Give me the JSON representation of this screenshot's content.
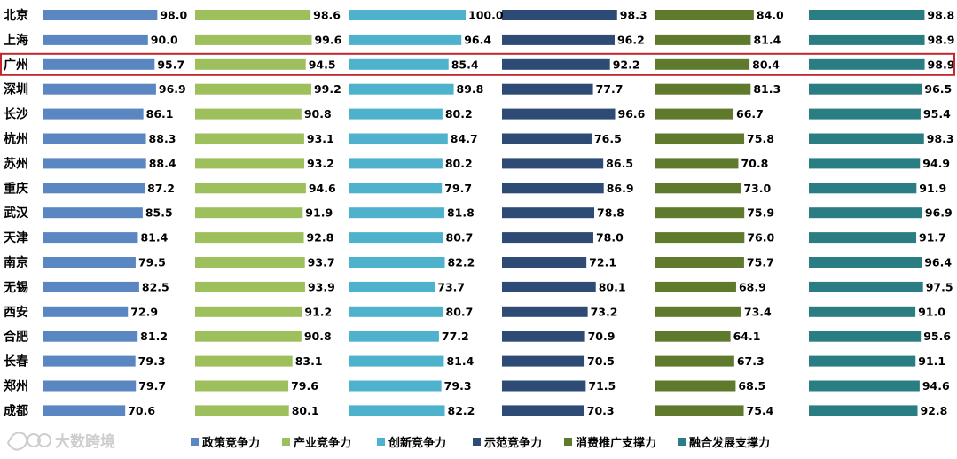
{
  "chart_data": {
    "type": "bar",
    "orientation": "horizontal",
    "title": "",
    "categories": [
      "北京",
      "上海",
      "广州",
      "深圳",
      "长沙",
      "杭州",
      "苏州",
      "重庆",
      "武汉",
      "天津",
      "南京",
      "无锡",
      "西安",
      "合肥",
      "长春",
      "郑州",
      "成都"
    ],
    "highlighted_category": "广州",
    "xlim": [
      0,
      100
    ],
    "series": [
      {
        "name": "政策竞争力",
        "color": "#5a86c1",
        "values": [
          98.0,
          90.0,
          95.7,
          96.9,
          86.1,
          88.3,
          88.4,
          87.2,
          85.5,
          81.4,
          79.5,
          82.5,
          72.9,
          81.2,
          79.3,
          79.7,
          70.6
        ],
        "labels": [
          "98.0",
          "90.0",
          "95.7",
          "96.9",
          "86.1",
          "88.3",
          "88.4",
          "87.2",
          "85.5",
          "81.4",
          "79.5",
          "82.5",
          "72.9",
          "81.2",
          "79.3",
          "79.7",
          "70.6"
        ]
      },
      {
        "name": "产业竞争力",
        "color": "#9dbf5c",
        "values": [
          98.6,
          99.6,
          94.5,
          99.2,
          90.8,
          93.1,
          93.2,
          94.6,
          91.9,
          92.8,
          93.7,
          93.9,
          91.2,
          90.8,
          83.1,
          79.6,
          80.1
        ],
        "labels": [
          "98.6",
          "99.6",
          "94.5",
          "99.2",
          "90.8",
          "93.1",
          "93.2",
          "94.6",
          "91.9",
          "92.8",
          "93.7",
          "93.9",
          "91.2",
          "90.8",
          "83.1",
          "79.6",
          "80.1"
        ]
      },
      {
        "name": "创新竞争力",
        "color": "#4fb2cc",
        "values": [
          100.0,
          96.4,
          85.4,
          89.8,
          80.2,
          84.7,
          80.2,
          79.7,
          81.8,
          80.7,
          82.2,
          73.7,
          80.7,
          77.2,
          81.4,
          79.3,
          82.2
        ],
        "labels": [
          "100.0",
          "96.4",
          "85.4",
          "89.8",
          "80.2",
          "84.7",
          "80.2",
          "79.7",
          "81.8",
          "80.7",
          "82.2",
          "73.7",
          "80.7",
          "77.2",
          "81.4",
          "79.3",
          "82.2"
        ]
      },
      {
        "name": "示范竞争力",
        "color": "#2d4b74",
        "values": [
          98.3,
          96.2,
          92.2,
          77.7,
          96.6,
          76.5,
          86.5,
          86.9,
          78.8,
          78.0,
          72.1,
          80.1,
          73.2,
          70.9,
          70.5,
          71.5,
          70.3
        ],
        "labels": [
          "98.3",
          "96.2",
          "92.2",
          "77.7",
          "96.6",
          "76.5",
          "86.5",
          "86.9",
          "78.8",
          "78.0",
          "72.1",
          "80.1",
          "73.2",
          "70.9",
          "70.5",
          "71.5",
          "70.3"
        ]
      },
      {
        "name": "消费推广支撑力",
        "color": "#5f7a2c",
        "values": [
          84.0,
          81.4,
          80.4,
          81.3,
          66.7,
          75.8,
          70.8,
          73.0,
          75.9,
          76.0,
          75.7,
          68.9,
          73.4,
          64.1,
          67.3,
          68.5,
          75.4
        ],
        "labels": [
          "84.0",
          "81.4",
          "80.4",
          "81.3",
          "66.7",
          "75.8",
          "70.8",
          "73.0",
          "75.9",
          "76.0",
          "75.7",
          "68.9",
          "73.4",
          "64.1",
          "67.3",
          "68.5",
          "75.4"
        ]
      },
      {
        "name": "融合发展支撑力",
        "color": "#2b7d84",
        "values": [
          98.8,
          98.9,
          98.9,
          96.5,
          95.4,
          98.3,
          94.9,
          91.9,
          96.9,
          91.7,
          96.4,
          97.5,
          91.0,
          95.6,
          91.1,
          94.6,
          92.8
        ],
        "labels": [
          "98.8",
          "98.9",
          "98.9",
          "96.5",
          "95.4",
          "98.3",
          "94.9",
          "91.9",
          "96.9",
          "91.7",
          "96.4",
          "97.5",
          "91.0",
          "95.6",
          "91.1",
          "94.6",
          "92.8"
        ]
      }
    ],
    "legend_position": "bottom-center",
    "highlight_color": "#c0282d"
  },
  "watermark": "大数跨境"
}
